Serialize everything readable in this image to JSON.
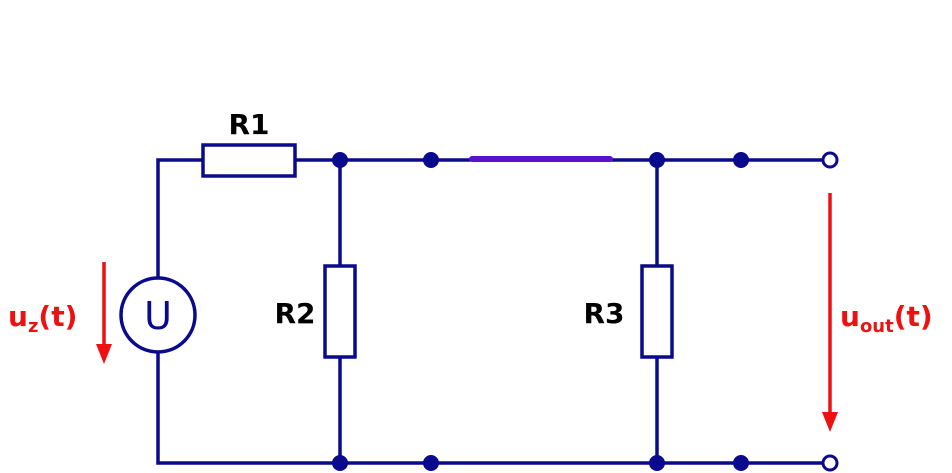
{
  "labels": {
    "r1": "R1",
    "r2": "R2",
    "r3": "R3",
    "source_symbol": "U",
    "input_main": "u",
    "input_sub": "z",
    "input_suffix": "(t)",
    "output_main": "u",
    "output_sub": "out",
    "output_suffix": "(t)"
  },
  "colors": {
    "wire": "#0a0a8c",
    "accent_link": "#5a10d0",
    "arrow": "#ee1111",
    "text": "#000000"
  }
}
